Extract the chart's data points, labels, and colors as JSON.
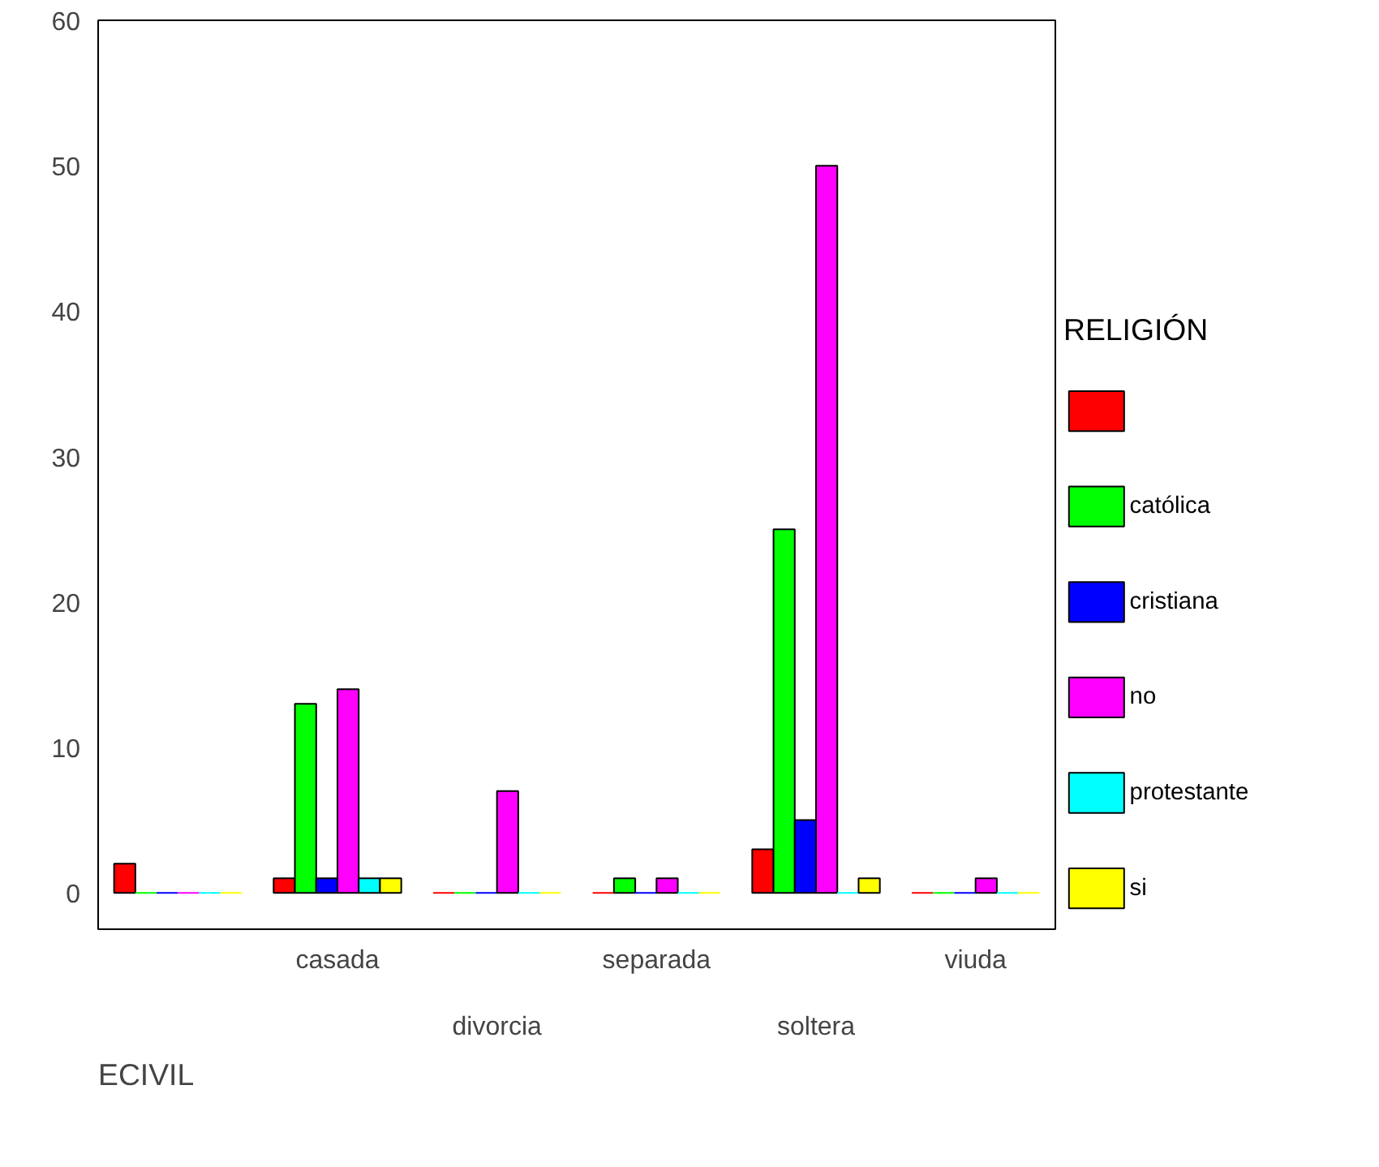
{
  "chart_data": {
    "type": "bar",
    "xlabel": "ECIVIL",
    "legend_title": "RELIGIÓN",
    "legend": "right",
    "categories": [
      null,
      "casada",
      "divorcia",
      "separada",
      "soltera",
      "viuda"
    ],
    "series": [
      {
        "color": "#ff0000",
        "values": [
          2,
          1,
          0,
          0,
          3,
          0
        ]
      },
      {
        "name": "católica",
        "color": "#00ff00",
        "values": [
          0,
          13,
          0,
          1,
          25,
          0
        ]
      },
      {
        "name": "cristiana",
        "color": "#0000ff",
        "values": [
          0,
          1,
          0,
          0,
          5,
          0
        ]
      },
      {
        "name": "no",
        "color": "#ff00ff",
        "values": [
          0,
          14,
          7,
          1,
          50,
          1
        ]
      },
      {
        "name": "protestante",
        "color": "#00ffff",
        "values": [
          0,
          1,
          0,
          0,
          0,
          0
        ]
      },
      {
        "name": "si",
        "color": "#ffff00",
        "values": [
          0,
          1,
          0,
          0,
          1,
          0
        ]
      }
    ],
    "ylim": [
      -2.5,
      60
    ],
    "yticks": [
      0,
      10,
      20,
      30,
      40,
      50,
      60
    ],
    "grid": false
  }
}
